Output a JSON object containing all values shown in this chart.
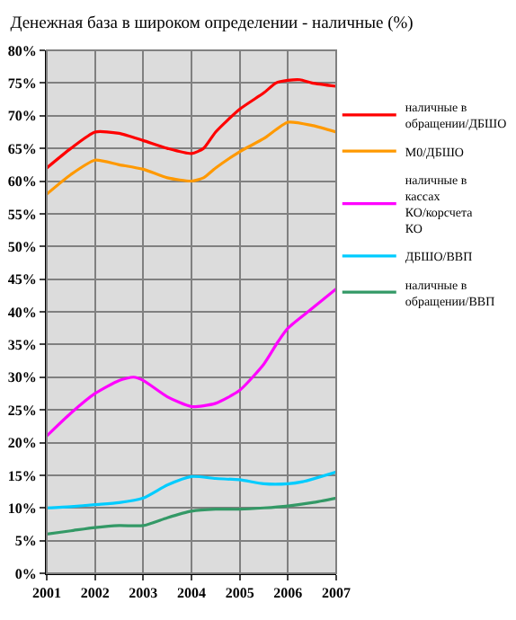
{
  "chart_data": {
    "type": "line",
    "title": "Денежная база в широком определении - наличные (%)",
    "xlim": [
      2001,
      2007
    ],
    "xticks": [
      2001,
      2002,
      2003,
      2004,
      2005,
      2006,
      2007
    ],
    "ylim": [
      0,
      80
    ],
    "yticks": [
      {
        "value": 0,
        "label": "0%"
      },
      {
        "value": 5,
        "label": "5%"
      },
      {
        "value": 10,
        "label": "10%"
      },
      {
        "value": 15,
        "label": "15%"
      },
      {
        "value": 20,
        "label": "20%"
      },
      {
        "value": 25,
        "label": "25%"
      },
      {
        "value": 30,
        "label": "30%"
      },
      {
        "value": 35,
        "label": "35%"
      },
      {
        "value": 40,
        "label": "40%"
      },
      {
        "value": 45,
        "label": "45%"
      },
      {
        "value": 50,
        "label": "50%"
      },
      {
        "value": 55,
        "label": "55%"
      },
      {
        "value": 60,
        "label": "60%"
      },
      {
        "value": 65,
        "label": "65%"
      },
      {
        "value": 70,
        "label": "70%"
      },
      {
        "value": 75,
        "label": "75%"
      },
      {
        "value": 80,
        "label": "80%"
      }
    ],
    "grid": true,
    "legend": "right",
    "marker": "none",
    "line_style": "solid",
    "series": [
      {
        "name": "наличные в обращении/ДБШО",
        "color": "#ff0000",
        "x": [
          2001,
          2001.5,
          2002,
          2002.5,
          2003,
          2003.5,
          2004,
          2004.25,
          2004.5,
          2005,
          2005.5,
          2005.75,
          2006,
          2006.25,
          2006.5,
          2007
        ],
        "values": [
          62,
          65,
          67.5,
          67.3,
          66.2,
          65,
          64.2,
          65,
          67.5,
          71,
          73.5,
          75,
          75.4,
          75.5,
          75,
          74.5
        ]
      },
      {
        "name": "М0/ДБШО",
        "color": "#ff9900",
        "x": [
          2001,
          2001.5,
          2002,
          2002.5,
          2003,
          2003.5,
          2004,
          2004.25,
          2004.5,
          2005,
          2005.5,
          2006,
          2006.5,
          2007
        ],
        "values": [
          58,
          61,
          63.2,
          62.5,
          61.8,
          60.5,
          60,
          60.5,
          62,
          64.5,
          66.5,
          69,
          68.5,
          67.5
        ]
      },
      {
        "name": "наличные в кассах КО/корсчета КО",
        "color": "#ff00ff",
        "x": [
          2001,
          2001.5,
          2002,
          2002.5,
          2002.8,
          2003,
          2003.5,
          2004,
          2004.5,
          2005,
          2005.5,
          2005.8,
          2006,
          2006.5,
          2007
        ],
        "values": [
          21,
          24.5,
          27.5,
          29.5,
          30,
          29.5,
          27,
          25.5,
          26,
          28,
          32,
          35.5,
          37.5,
          40.5,
          43.5
        ]
      },
      {
        "name": "ДБШО/ВВП",
        "color": "#00ccff",
        "x": [
          2001,
          2001.5,
          2002,
          2002.5,
          2003,
          2003.5,
          2004,
          2004.5,
          2005,
          2005.5,
          2006,
          2006.3,
          2007
        ],
        "values": [
          10,
          10.2,
          10.5,
          10.8,
          11.5,
          13.5,
          14.8,
          14.5,
          14.3,
          13.7,
          13.7,
          14,
          15.5
        ]
      },
      {
        "name": "наличные в обращении/ВВП",
        "color": "#339966",
        "x": [
          2001,
          2001.5,
          2002,
          2002.5,
          2003,
          2003.5,
          2004,
          2004.5,
          2005,
          2005.5,
          2006,
          2006.5,
          2007
        ],
        "values": [
          6,
          6.5,
          7,
          7.3,
          7.3,
          8.5,
          9.5,
          9.8,
          9.8,
          10,
          10.3,
          10.8,
          11.5
        ]
      }
    ]
  }
}
